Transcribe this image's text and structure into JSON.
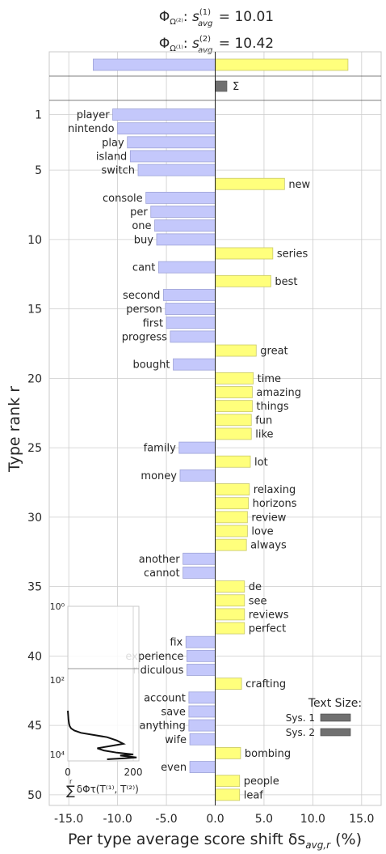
{
  "chart_data": {
    "type": "bar",
    "orientation": "horizontal",
    "title_lines": [
      {
        "phi": "Φ",
        "sub": "Ω⁽²⁾",
        "s_sup": "(1)",
        "s_sub": "avg",
        "eq": "= 10.01"
      },
      {
        "phi": "Φ",
        "sub": "Ω⁽¹⁾",
        "s_sup": "(2)",
        "s_sub": "avg",
        "eq": "= 10.42"
      }
    ],
    "xlabel": "Per type average score shift δs",
    "xlabel_sub": "avg,r",
    "xlabel_unit": " (%)",
    "ylabel": "Type rank r",
    "xlim": [
      -17.0,
      17.0
    ],
    "x_ticks": [
      -15,
      -10,
      -5,
      0,
      5,
      10,
      15
    ],
    "x_tick_labels": [
      "-15.0",
      "-10.0",
      "-5.0",
      "0.0",
      "5.0",
      "10.0",
      "15.0"
    ],
    "y_ticks": [
      1,
      5,
      10,
      15,
      20,
      25,
      30,
      35,
      40,
      45,
      50
    ],
    "summary_bars": {
      "negative": -12.5,
      "positive": 13.6
    },
    "sum_bar": {
      "value": 1.2,
      "label": "Σ"
    },
    "words": [
      {
        "rank": 1,
        "word": "player",
        "value": -10.5
      },
      {
        "rank": 2,
        "word": "nintendo",
        "value": -10.0
      },
      {
        "rank": 3,
        "word": "play",
        "value": -9.0
      },
      {
        "rank": 4,
        "word": "island",
        "value": -8.7
      },
      {
        "rank": 5,
        "word": "switch",
        "value": -7.9
      },
      {
        "rank": 6,
        "word": "new",
        "value": 7.1
      },
      {
        "rank": 7,
        "word": "console",
        "value": -7.1
      },
      {
        "rank": 8,
        "word": "per",
        "value": -6.6
      },
      {
        "rank": 9,
        "word": "one",
        "value": -6.2
      },
      {
        "rank": 10,
        "word": "buy",
        "value": -6.0
      },
      {
        "rank": 11,
        "word": "series",
        "value": 5.9
      },
      {
        "rank": 12,
        "word": "cant",
        "value": -5.8
      },
      {
        "rank": 13,
        "word": "best",
        "value": 5.7
      },
      {
        "rank": 14,
        "word": "second",
        "value": -5.3
      },
      {
        "rank": 15,
        "word": "person",
        "value": -5.1
      },
      {
        "rank": 16,
        "word": "first",
        "value": -5.0
      },
      {
        "rank": 17,
        "word": "progress",
        "value": -4.6
      },
      {
        "rank": 18,
        "word": "great",
        "value": 4.2
      },
      {
        "rank": 19,
        "word": "bought",
        "value": -4.3
      },
      {
        "rank": 20,
        "word": "time",
        "value": 3.9
      },
      {
        "rank": 21,
        "word": "amazing",
        "value": 3.8
      },
      {
        "rank": 22,
        "word": "things",
        "value": 3.8
      },
      {
        "rank": 23,
        "word": "fun",
        "value": 3.7
      },
      {
        "rank": 24,
        "word": "like",
        "value": 3.7
      },
      {
        "rank": 25,
        "word": "family",
        "value": -3.7
      },
      {
        "rank": 26,
        "word": "lot",
        "value": 3.6
      },
      {
        "rank": 27,
        "word": "money",
        "value": -3.6
      },
      {
        "rank": 28,
        "word": "relaxing",
        "value": 3.5
      },
      {
        "rank": 29,
        "word": "horizons",
        "value": 3.4
      },
      {
        "rank": 30,
        "word": "review",
        "value": 3.3
      },
      {
        "rank": 31,
        "word": "love",
        "value": 3.3
      },
      {
        "rank": 32,
        "word": "always",
        "value": 3.2
      },
      {
        "rank": 33,
        "word": "another",
        "value": -3.3
      },
      {
        "rank": 34,
        "word": "cannot",
        "value": -3.3
      },
      {
        "rank": 35,
        "word": "de",
        "value": 3.0
      },
      {
        "rank": 36,
        "word": "see",
        "value": 3.0
      },
      {
        "rank": 37,
        "word": "reviews",
        "value": 3.0
      },
      {
        "rank": 38,
        "word": "perfect",
        "value": 3.0
      },
      {
        "rank": 39,
        "word": "fix",
        "value": -3.0
      },
      {
        "rank": 40,
        "word": "experience",
        "value": -2.9
      },
      {
        "rank": 41,
        "word": "ridiculous",
        "value": -2.9
      },
      {
        "rank": 42,
        "word": "crafting",
        "value": 2.7
      },
      {
        "rank": 43,
        "word": "account",
        "value": -2.7
      },
      {
        "rank": 44,
        "word": "save",
        "value": -2.7
      },
      {
        "rank": 45,
        "word": "anything",
        "value": -2.7
      },
      {
        "rank": 46,
        "word": "wife",
        "value": -2.6
      },
      {
        "rank": 47,
        "word": "bombing",
        "value": 2.6
      },
      {
        "rank": 48,
        "word": "even",
        "value": -2.6
      },
      {
        "rank": 49,
        "word": "people",
        "value": 2.5
      },
      {
        "rank": 50,
        "word": "leaf",
        "value": 2.5
      }
    ],
    "legend": {
      "title": "Text Size:",
      "items": [
        {
          "label": "Sys. 1",
          "value": 1.0
        },
        {
          "label": "Sys. 2",
          "value": 1.0
        }
      ]
    },
    "inset": {
      "y_tick_labels": [
        "10⁰",
        "10²",
        "10⁴"
      ],
      "x_tick_labels": [
        "0",
        "200"
      ],
      "xlabel": "Σ δΦτ(T⁽¹⁾, T⁽²⁾)",
      "xlabel_sup": "r",
      "curve": [
        [
          0,
          100
        ],
        [
          2,
          140
        ],
        [
          4,
          160
        ],
        [
          6,
          170
        ],
        [
          10,
          180
        ],
        [
          20,
          190
        ],
        [
          40,
          200
        ],
        [
          80,
          210
        ],
        [
          120,
          220
        ],
        [
          150,
          235
        ],
        [
          170,
          250
        ],
        [
          130,
          260
        ],
        [
          90,
          270
        ],
        [
          110,
          280
        ],
        [
          150,
          290
        ],
        [
          200,
          298
        ],
        [
          160,
          303
        ],
        [
          190,
          308
        ],
        [
          210,
          312
        ],
        [
          180,
          315
        ],
        [
          140,
          318
        ],
        [
          120,
          320
        ]
      ]
    },
    "colors": {
      "negative": "#c4c8fb",
      "positive": "#ffff7c",
      "sum": "#707070",
      "legend": "#707070"
    }
  }
}
